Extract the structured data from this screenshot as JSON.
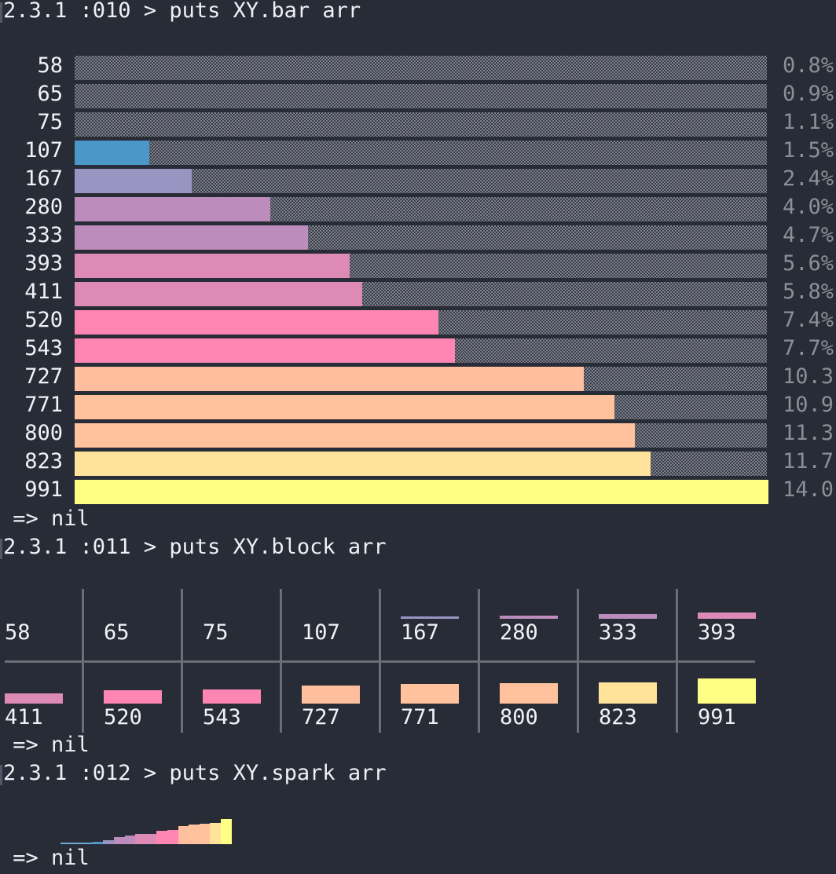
{
  "prompt": {
    "line1": "2.3.1 :010 > puts XY.bar arr",
    "line2": "2.3.1 :011 > puts XY.block arr",
    "line3": "2.3.1 :012 > puts XY.spark arr"
  },
  "result": {
    "nil1": " => nil",
    "nil2": " => nil",
    "nil3": " => nil"
  },
  "colors": {
    "background": "#282c37",
    "c58": "#6fa8d6",
    "c107": "#4b98c8",
    "c167": "#9a94c2",
    "c280": "#bb8cbc",
    "c393": "#dd8ab6",
    "c520": "#ff86b2",
    "c727": "#ffbe9e",
    "c771": "#ffc29c",
    "c823": "#ffe39a",
    "c991": "#ffff85"
  },
  "chart_data": {
    "type": "bar",
    "orientation": "horizontal",
    "categories": [
      "58",
      "65",
      "75",
      "107",
      "167",
      "280",
      "333",
      "393",
      "411",
      "520",
      "543",
      "727",
      "771",
      "800",
      "823",
      "991"
    ],
    "values": [
      58,
      65,
      75,
      107,
      167,
      280,
      333,
      393,
      411,
      520,
      543,
      727,
      771,
      800,
      823,
      991
    ],
    "percent_labels": [
      "0.8%",
      "0.9%",
      "1.1%",
      "1.5%",
      "2.4%",
      "4.0%",
      "4.7%",
      "5.6%",
      "5.8%",
      "7.4%",
      "7.7%",
      "10.3",
      "10.9",
      "11.3",
      "11.7",
      "14.0"
    ],
    "xlim": [
      0,
      991
    ]
  },
  "block": {
    "rows": [
      [
        "58",
        "65",
        "75",
        "107",
        "167",
        "280",
        "333",
        "393"
      ],
      [
        "411",
        "520",
        "543",
        "727",
        "771",
        "800",
        "823",
        "991"
      ]
    ]
  }
}
